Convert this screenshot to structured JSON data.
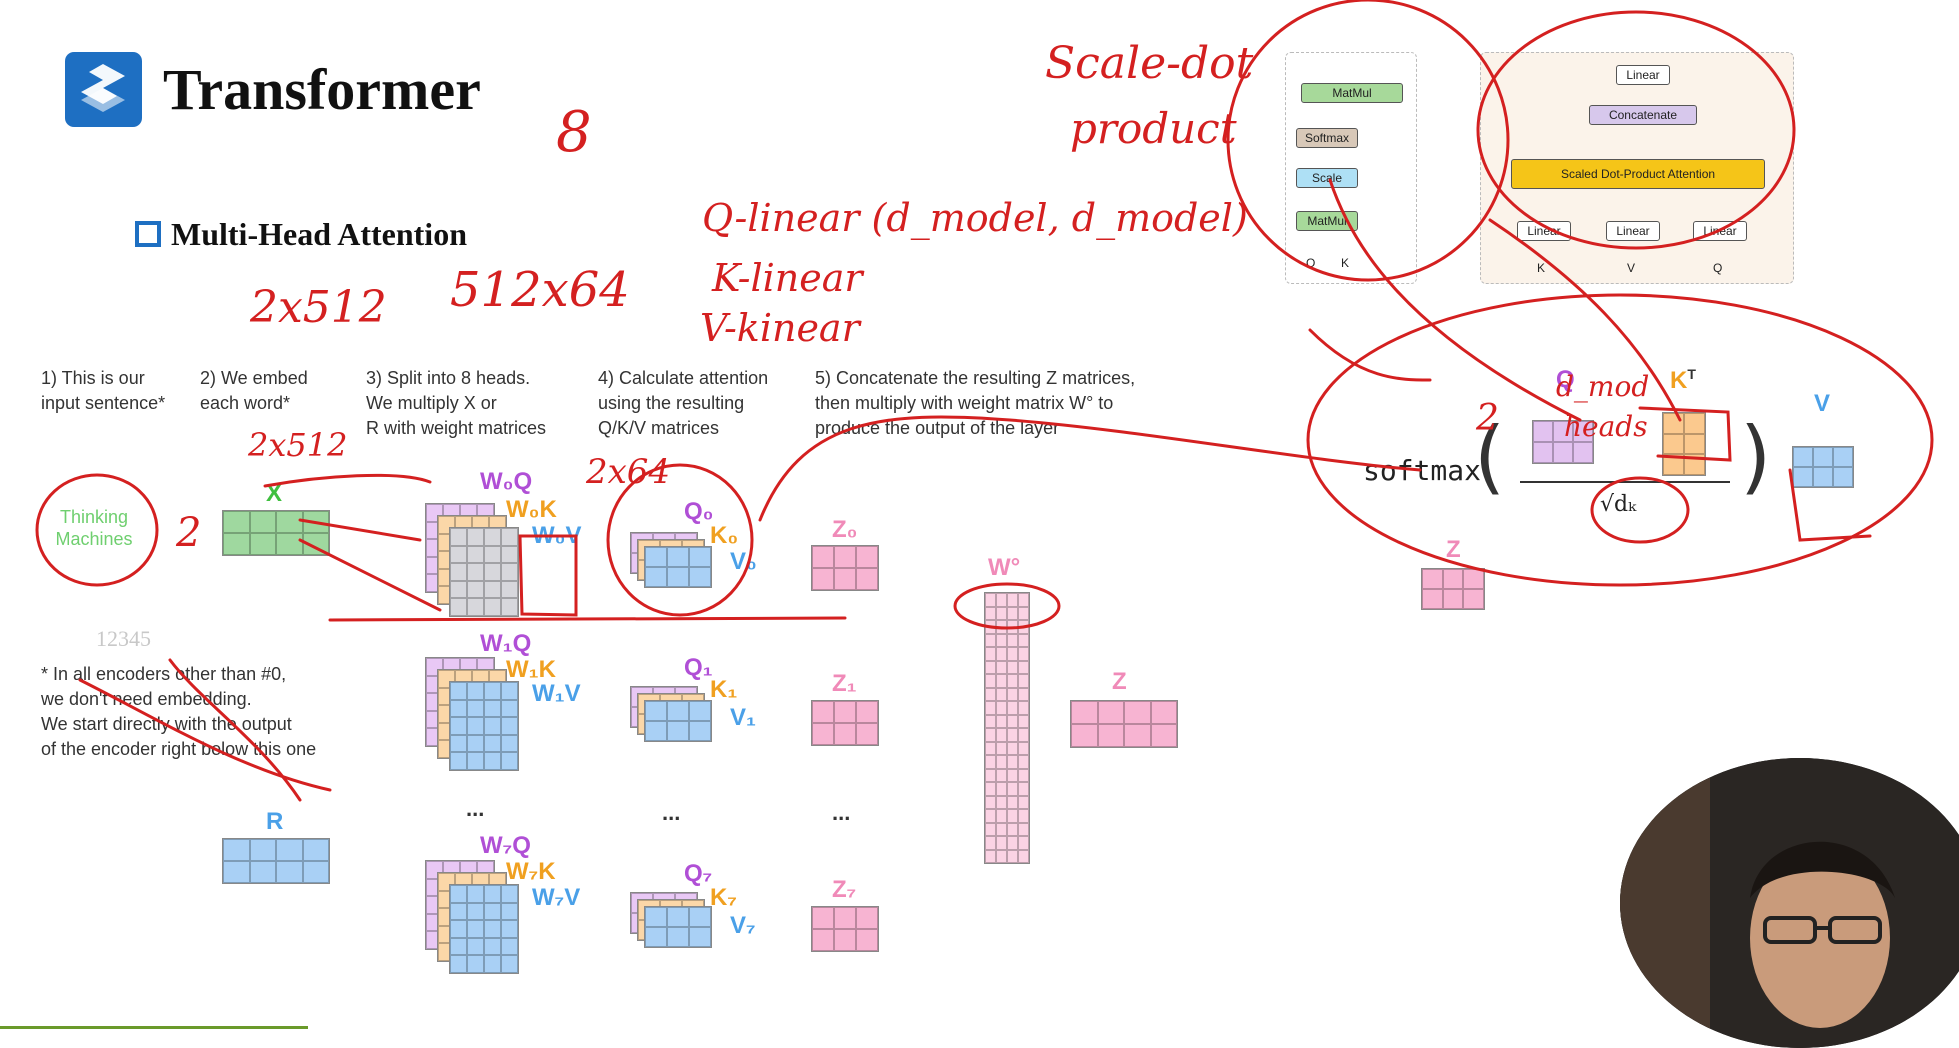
{
  "header": {
    "title": "Transformer",
    "section": "Multi-Head Attention"
  },
  "steps": [
    "1) This is our input sentence*",
    "2) We embed each word*",
    "3) Split into 8 heads. We multiply X or R with weight matrices",
    "4) Calculate attention using the resulting Q/K/V matrices",
    "5) Concatenate the resulting Z matrices, then multiply with weight matrix W° to produce the output of the layer"
  ],
  "step_lines": {
    "s1": [
      "1) This is our",
      "input sentence*"
    ],
    "s2": [
      "2) We embed",
      "each word*"
    ],
    "s3": [
      "3) Split into 8 heads.",
      "We multiply X or",
      "R with weight matrices"
    ],
    "s4": [
      "4) Calculate attention",
      "using the resulting",
      "Q/K/V matrices"
    ],
    "s5": [
      "5) Concatenate the resulting Z matrices,",
      "then multiply with weight matrix W° to",
      "produce the output of the layer"
    ]
  },
  "input_sentence": "Thinking Machines",
  "labels": {
    "x": "X",
    "r": "R",
    "z": "Z",
    "wo": "W°",
    "w0q": "W₀Q",
    "w0k": "W₀K",
    "w0v": "W₀V",
    "w1q": "W₁Q",
    "w1k": "W₁K",
    "w1v": "W₁V",
    "w7q": "W₇Q",
    "w7k": "W₇K",
    "w7v": "W₇V",
    "q0": "Q₀",
    "k0": "K₀",
    "v0": "V₀",
    "q1": "Q₁",
    "k1": "K₁",
    "v1": "V₁",
    "q7": "Q₇",
    "k7": "K₇",
    "v7": "V₇",
    "z0": "Z₀",
    "z1": "Z₁",
    "z7": "Z₇",
    "ellipsis": "..."
  },
  "footnote": [
    "* In all encoders other than #0,",
    "we don't need embedding.",
    "We start directly with the output",
    "of the encoder right below this one"
  ],
  "faint_number": "12345",
  "formula": {
    "softmax": "softmax",
    "q": "Q",
    "k": "K",
    "kt": "T",
    "v": "V",
    "sqrt": "√dₖ",
    "z": "Z"
  },
  "arch_scaled": {
    "matmul_top": "MatMul",
    "softmax": "Softmax",
    "scale": "Scale",
    "matmul_bot": "MatMul",
    "q": "Q",
    "k": "K"
  },
  "arch_multi": {
    "linear_top": "Linear",
    "concat": "Concatenate",
    "sdpa": "Scaled Dot-Product Attention",
    "linear": "Linear",
    "v": "V",
    "k": "K",
    "q": "Q"
  },
  "handwriting": {
    "h1": "Scale-dot",
    "h2": "product",
    "h3": "8",
    "h4": "Q-linear (d_model, d_model)",
    "h5": "K-linear",
    "h6": "V-kinear",
    "h7": "2x512",
    "h8": "512x64",
    "h9": "2x512",
    "h10": "2x64",
    "h11": "2",
    "h12": "d_mod",
    "h13": "heads",
    "h14": "2"
  },
  "colors": {
    "accent": "#1e6fc2",
    "annotation": "#d42020",
    "green": "#9fd89f",
    "blue": "#a9d0f5",
    "pink": "#f7b4d2",
    "grey": "#d9d9d9"
  }
}
